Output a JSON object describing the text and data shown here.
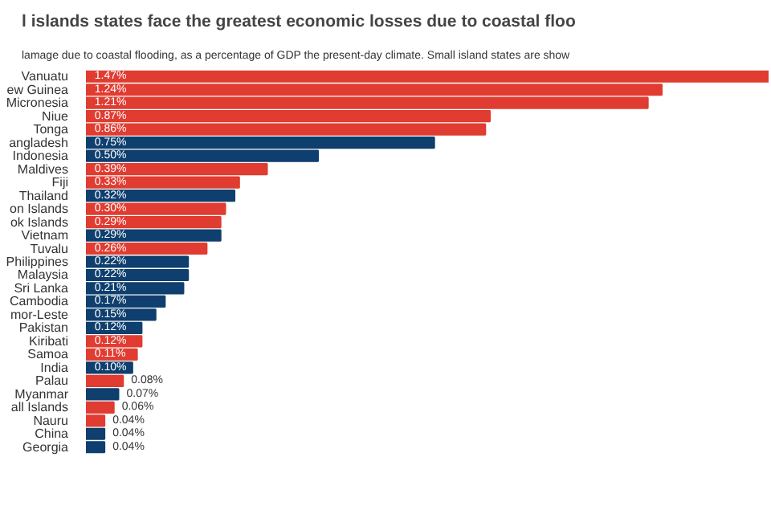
{
  "chart_data": {
    "type": "bar",
    "orientation": "horizontal",
    "title": "l islands states face the greatest economic losses due to coastal floo",
    "subtitle": "lamage due to coastal flooding, as a percentage of GDP the present-day climate. Small island states are show",
    "categories": [
      "Vanuatu",
      "ew Guinea",
      "Micronesia",
      "Niue",
      "Tonga",
      "angladesh",
      "Indonesia",
      "Maldives",
      "Fiji",
      "Thailand",
      "on Islands",
      "ok Islands",
      "Vietnam",
      "Tuvalu",
      "Philippines",
      "Malaysia",
      "Sri Lanka",
      "Cambodia",
      "mor-Leste",
      "Pakistan",
      "Kiribati",
      "Samoa",
      "India",
      "Palau",
      "Myanmar",
      "all Islands",
      "Nauru",
      "China",
      "Georgia"
    ],
    "values": [
      1.47,
      1.24,
      1.21,
      0.87,
      0.86,
      0.75,
      0.5,
      0.39,
      0.33,
      0.32,
      0.3,
      0.29,
      0.29,
      0.26,
      0.22,
      0.22,
      0.21,
      0.17,
      0.15,
      0.12,
      0.12,
      0.11,
      0.1,
      0.08,
      0.07,
      0.06,
      0.04,
      0.04,
      0.04
    ],
    "colors": [
      "#e03c31",
      "#e03c31",
      "#e03c31",
      "#e03c31",
      "#e03c31",
      "#0e3f6e",
      "#0e3f6e",
      "#e03c31",
      "#e03c31",
      "#0e3f6e",
      "#e03c31",
      "#e03c31",
      "#0e3f6e",
      "#e03c31",
      "#0e3f6e",
      "#0e3f6e",
      "#0e3f6e",
      "#0e3f6e",
      "#0e3f6e",
      "#0e3f6e",
      "#e03c31",
      "#e03c31",
      "#0e3f6e",
      "#e03c31",
      "#0e3f6e",
      "#e03c31",
      "#e03c31",
      "#0e3f6e",
      "#0e3f6e"
    ],
    "data_labels": true,
    "value_labels": [
      "1.47%",
      "1.24%",
      "1.21%",
      "0.87%",
      "0.86%",
      "0.75%",
      "0.50%",
      "0.39%",
      "0.33%",
      "0.32%",
      "0.30%",
      "0.29%",
      "0.29%",
      "0.26%",
      "0.22%",
      "0.22%",
      "0.21%",
      "0.17%",
      "0.15%",
      "0.12%",
      "0.12%",
      "0.11%",
      "0.10%",
      "0.08%",
      "0.07%",
      "0.06%",
      "0.04%",
      "0.04%",
      "0.04%"
    ],
    "grid": false
  }
}
